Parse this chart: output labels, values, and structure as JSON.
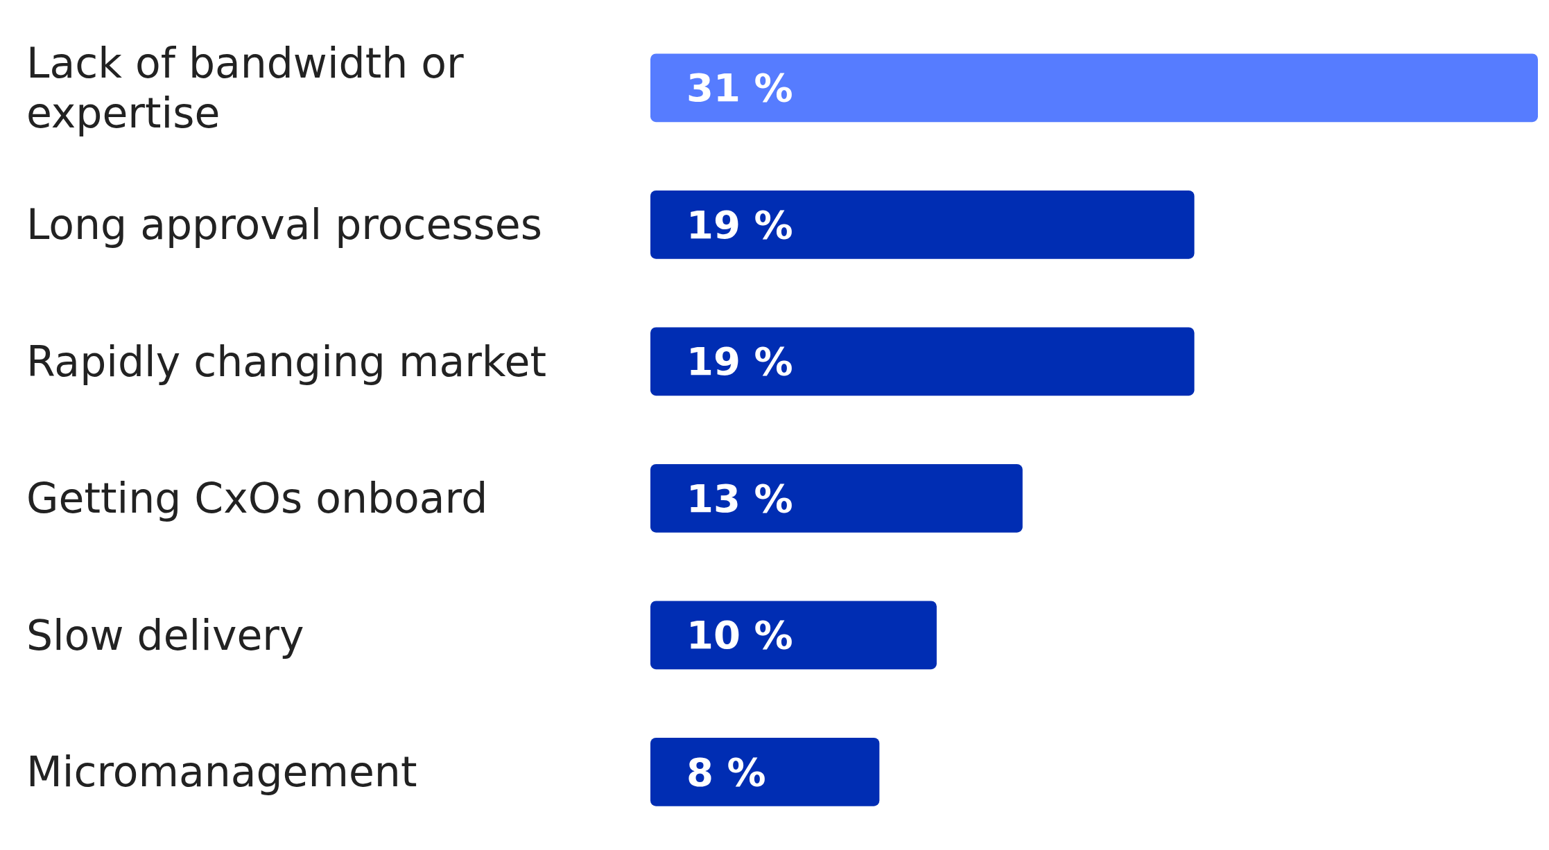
{
  "chart_data": {
    "type": "bar",
    "orientation": "horizontal",
    "categories": [
      "Lack of bandwidth or expertise",
      "Long approval processes",
      "Rapidly changing market",
      "Getting CxOs onboard",
      "Slow delivery",
      "Micromanagement"
    ],
    "values": [
      31,
      19,
      19,
      13,
      10,
      8
    ],
    "colors": [
      "#567cff",
      "#002db3",
      "#002db3",
      "#002db3",
      "#002db3",
      "#002db3"
    ],
    "value_labels": [
      "31 %",
      "19 %",
      "19 %",
      "13 %",
      "10 %",
      "8 %"
    ]
  }
}
